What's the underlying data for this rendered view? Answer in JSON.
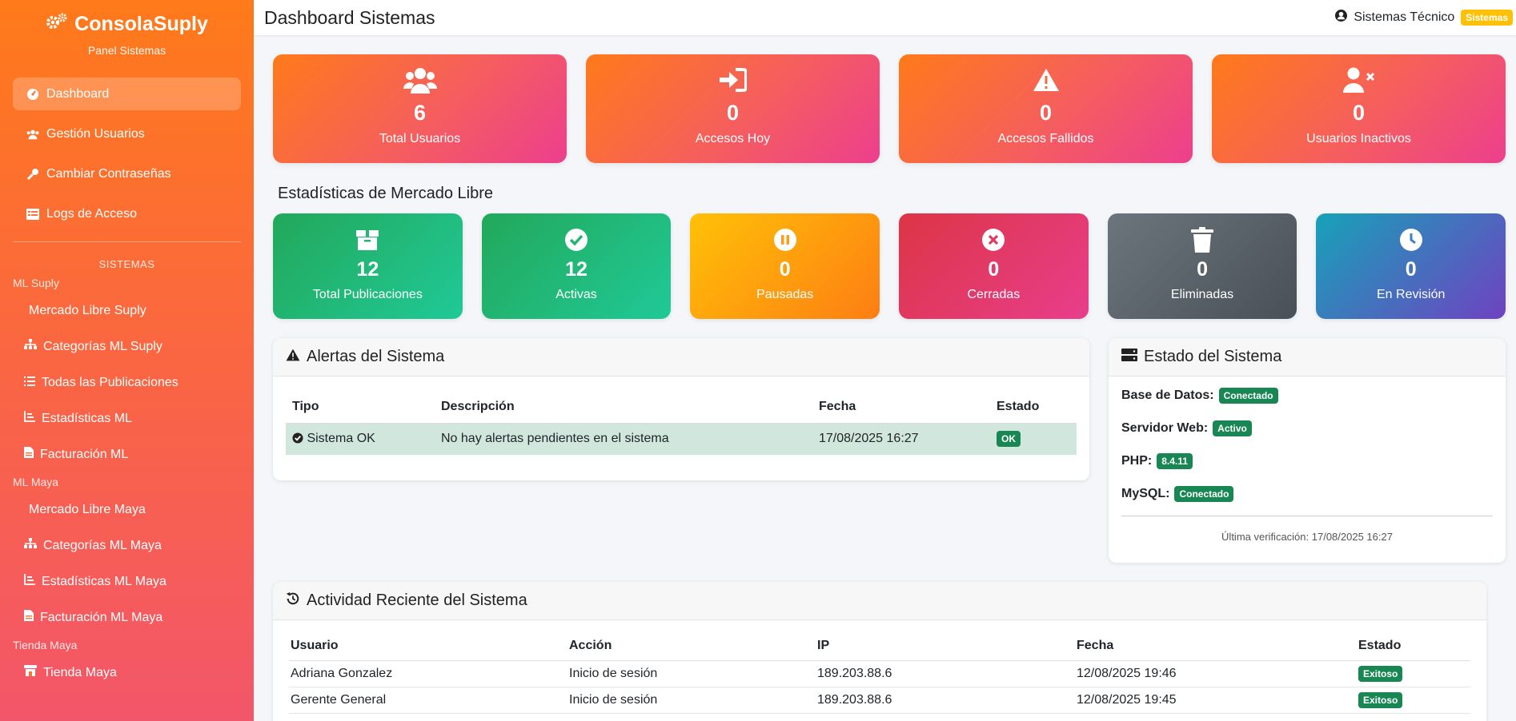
{
  "brand": {
    "title": "ConsolaSuply",
    "subtitle": "Panel Sistemas"
  },
  "sidebar": {
    "main_items": [
      {
        "label": "Dashboard",
        "icon": "dashboard-icon",
        "active": true
      },
      {
        "label": "Gestión Usuarios",
        "icon": "users-icon"
      },
      {
        "label": "Cambiar Contraseñas",
        "icon": "key-icon"
      },
      {
        "label": "Logs de Acceso",
        "icon": "list-icon"
      }
    ],
    "section_title": "SISTEMAS",
    "group_ml_suply": "ML Suply",
    "ml_suply_items": [
      {
        "label": "Mercado Libre Suply"
      },
      {
        "label": "Categorías ML Suply",
        "icon": "sitemap-icon"
      },
      {
        "label": "Todas las Publicaciones",
        "icon": "list-ul-icon"
      },
      {
        "label": "Estadísticas ML",
        "icon": "chart-icon"
      },
      {
        "label": "Facturación ML",
        "icon": "file-icon"
      }
    ],
    "group_ml_maya": "ML Maya",
    "ml_maya_items": [
      {
        "label": "Mercado Libre Maya"
      },
      {
        "label": "Categorías ML Maya",
        "icon": "sitemap-icon"
      },
      {
        "label": "Estadísticas ML Maya",
        "icon": "chart-icon"
      },
      {
        "label": "Facturación ML Maya",
        "icon": "file-icon"
      }
    ],
    "group_tienda_maya": "Tienda Maya",
    "tienda_maya_items": [
      {
        "label": "Tienda Maya",
        "icon": "store-icon"
      }
    ]
  },
  "header": {
    "title": "Dashboard Sistemas",
    "user_name": "Sistemas Técnico",
    "role": "Sistemas"
  },
  "stats": [
    {
      "value": "6",
      "label": "Total Usuarios",
      "icon": "users-icon"
    },
    {
      "value": "0",
      "label": "Accesos Hoy",
      "icon": "sign-in-icon"
    },
    {
      "value": "0",
      "label": "Accesos Fallidos",
      "icon": "warning-icon"
    },
    {
      "value": "0",
      "label": "Usuarios Inactivos",
      "icon": "user-times-icon"
    }
  ],
  "ml": {
    "title": "Estadísticas de Mercado Libre",
    "cards": [
      {
        "value": "12",
        "label": "Total Publicaciones",
        "icon": "box-icon",
        "from": "#22a85a",
        "to": "#20c997"
      },
      {
        "value": "12",
        "label": "Activas",
        "icon": "check-circle-icon",
        "from": "#22a85a",
        "to": "#20c997"
      },
      {
        "value": "0",
        "label": "Pausadas",
        "icon": "pause-circle-icon",
        "from": "#ffc107",
        "to": "#fd7e14"
      },
      {
        "value": "0",
        "label": "Cerradas",
        "icon": "times-circle-icon",
        "from": "#dc3545",
        "to": "#e83e8c"
      },
      {
        "value": "0",
        "label": "Eliminadas",
        "icon": "trash-icon",
        "from": "#6c757d",
        "to": "#495057"
      },
      {
        "value": "0",
        "label": "En Revisión",
        "icon": "clock-icon",
        "from": "#17a2b8",
        "to": "#6f42c1"
      }
    ]
  },
  "alerts": {
    "title": "Alertas del Sistema",
    "columns": [
      "Tipo",
      "Descripción",
      "Fecha",
      "Estado"
    ],
    "rows": [
      {
        "tipo": "Sistema OK",
        "descripcion": "No hay alertas pendientes en el sistema",
        "fecha": "17/08/2025 16:27",
        "estado": "OK"
      }
    ]
  },
  "estado": {
    "title": "Estado del Sistema",
    "items": [
      {
        "label": "Base de Datos:",
        "value": "Conectado"
      },
      {
        "label": "Servidor Web:",
        "value": "Activo"
      },
      {
        "label": "PHP:",
        "value": "8.4.11"
      },
      {
        "label": "MySQL:",
        "value": "Conectado"
      }
    ],
    "verification": "Última verificación: 17/08/2025 16:27"
  },
  "activity": {
    "title": "Actividad Reciente del Sistema",
    "columns": [
      "Usuario",
      "Acción",
      "IP",
      "Fecha",
      "Estado"
    ],
    "rows": [
      {
        "usuario": "Adriana Gonzalez",
        "accion": "Inicio de sesión",
        "ip": "189.203.88.6",
        "fecha": "12/08/2025 19:46",
        "estado": "Exitoso"
      },
      {
        "usuario": "Gerente General",
        "accion": "Inicio de sesión",
        "ip": "189.203.88.6",
        "fecha": "12/08/2025 19:45",
        "estado": "Exitoso"
      }
    ]
  },
  "colors": {
    "success": "#198754",
    "warning": "#ffc107"
  }
}
